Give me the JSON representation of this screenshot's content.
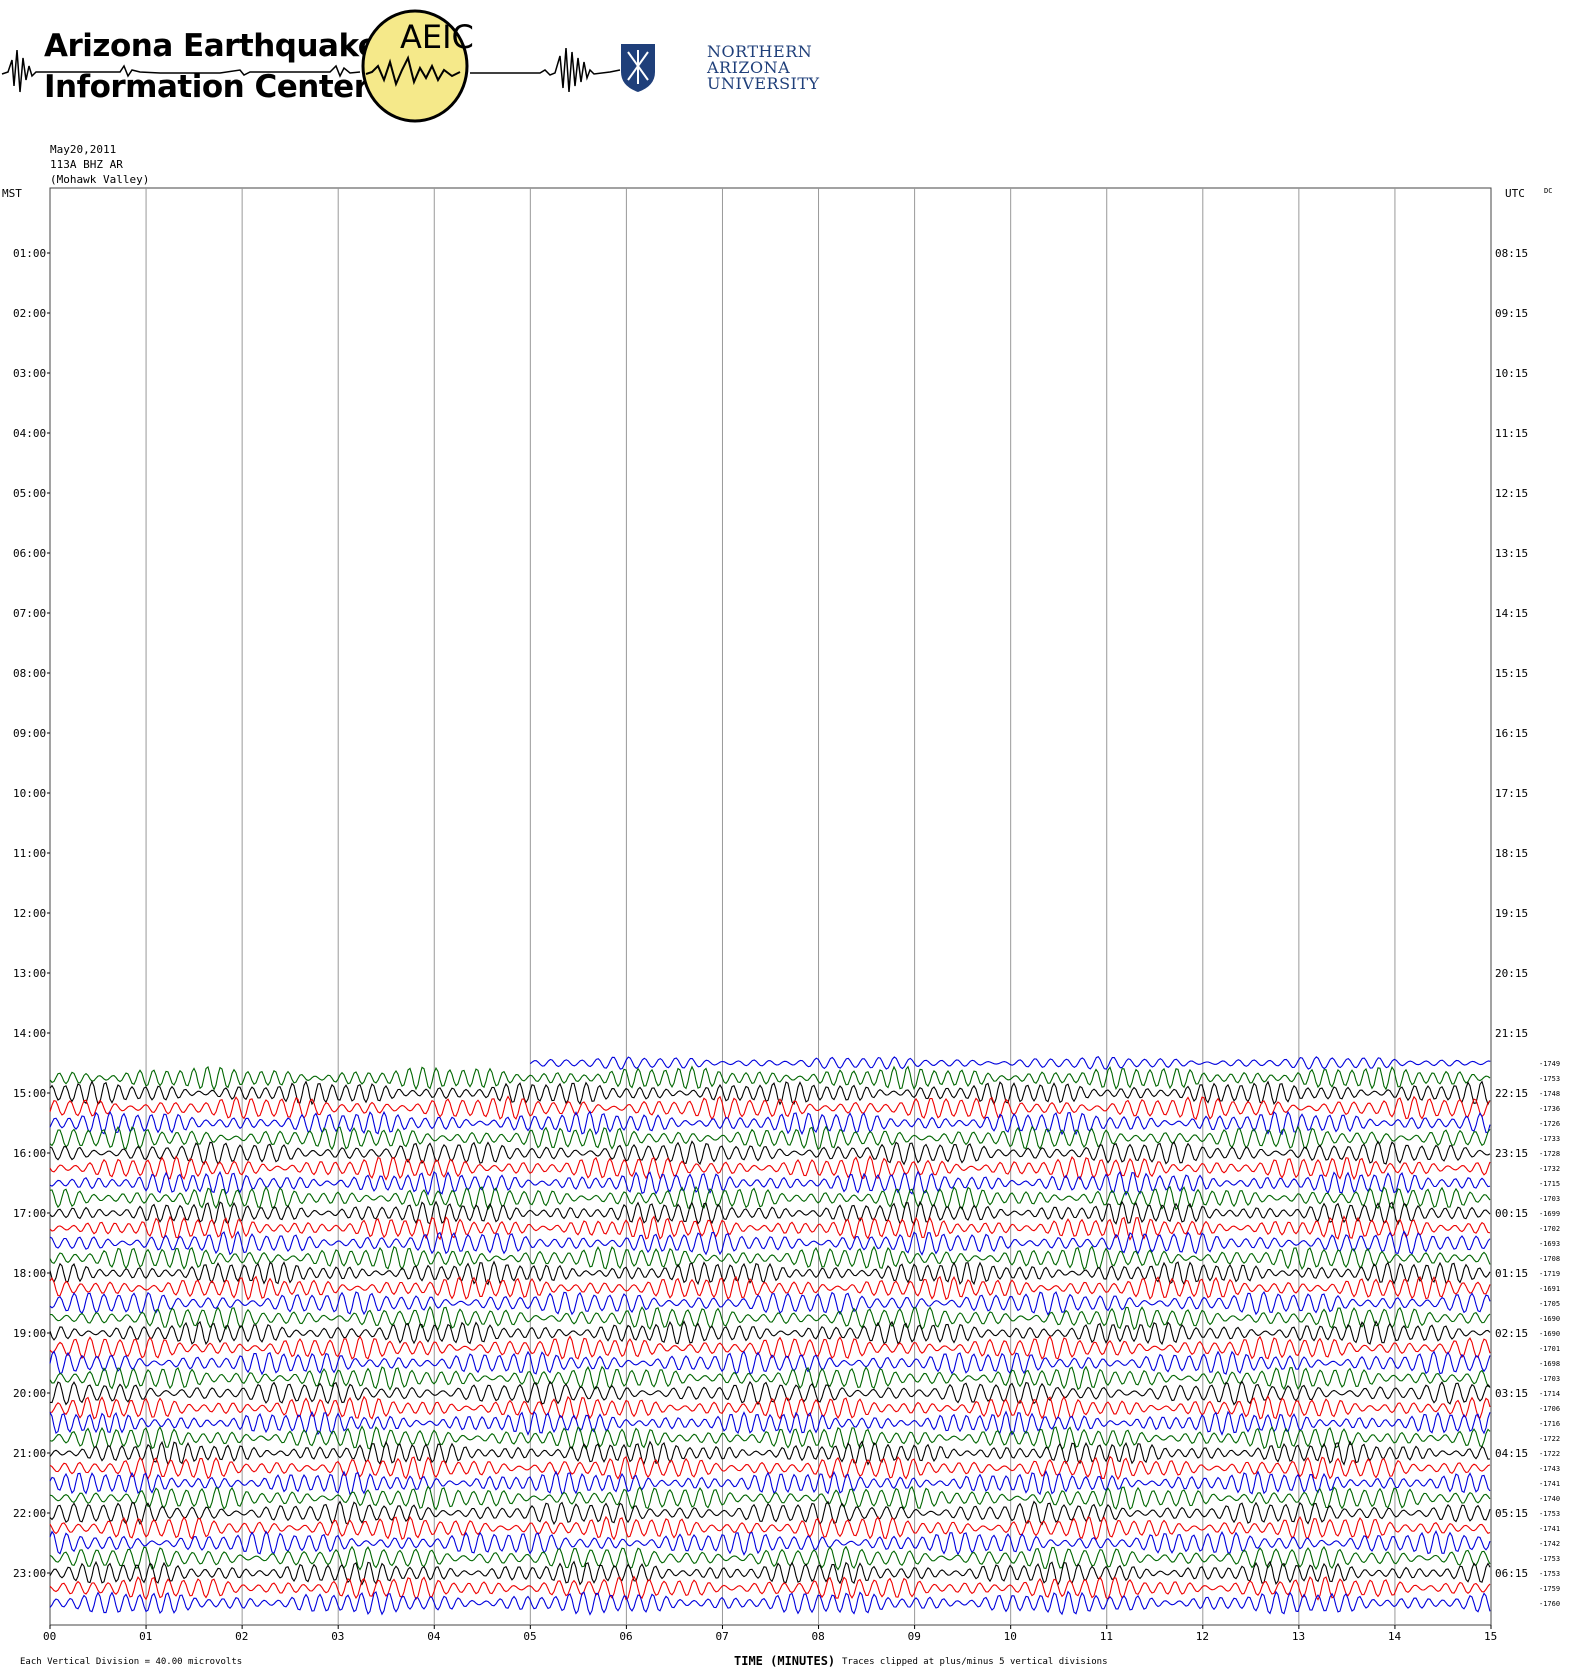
{
  "header": {
    "org_line1": "Arizona Earthquake",
    "org_line2": "Information Center",
    "badge_text": "AEIC",
    "university_line1": "NORTHERN",
    "university_line2": "ARIZONA",
    "university_line3": "UNIVERSITY"
  },
  "meta": {
    "date": "May20,2011",
    "channel": "113A BHZ AR",
    "location": "(Mohawk Valley)"
  },
  "footer": {
    "division_note": "Each Vertical Division =   40.00 microvolts",
    "clip_note": "Traces clipped at plus/minus 5 vertical divisions"
  },
  "colors": {
    "trace_cycle": [
      "#0000dd",
      "#006600",
      "#000000",
      "#ee0000"
    ],
    "grid": "#999999",
    "badge_fill": "#f5e98a"
  },
  "chart_data": {
    "type": "line",
    "title": "",
    "left_axis_label": "MST",
    "right_axis_label": "UTC",
    "right_extra_label": "DC",
    "xlabel": "TIME (MINUTES)",
    "xlim": [
      0,
      15
    ],
    "x_ticks": [
      "00",
      "01",
      "02",
      "03",
      "04",
      "05",
      "06",
      "07",
      "08",
      "09",
      "10",
      "11",
      "12",
      "13",
      "14",
      "15"
    ],
    "rows_per_hour": 4,
    "mst_labels": [
      "01:00",
      "02:00",
      "03:00",
      "04:00",
      "05:00",
      "06:00",
      "07:00",
      "08:00",
      "09:00",
      "10:00",
      "11:00",
      "12:00",
      "13:00",
      "14:00",
      "15:00",
      "16:00",
      "17:00",
      "18:00",
      "19:00",
      "20:00",
      "21:00",
      "22:00",
      "23:00"
    ],
    "utc_labels": [
      "08:15",
      "09:15",
      "10:15",
      "11:15",
      "12:15",
      "13:15",
      "14:15",
      "15:15",
      "16:15",
      "17:15",
      "18:15",
      "19:15",
      "20:15",
      "21:15",
      "22:15",
      "23:15",
      "00:15",
      "01:15",
      "02:15",
      "03:15",
      "04:15",
      "05:15",
      "06:15"
    ],
    "first_trace": {
      "start_minute": 5,
      "mst_row": 58
    },
    "dc_offsets": [
      "-1749",
      "-1753",
      "-1748",
      "-1736",
      "-1726",
      "-1733",
      "-1728",
      "-1732",
      "-1715",
      "-1703",
      "-1699",
      "-1702",
      "-1693",
      "-1708",
      "-1719",
      "-1691",
      "-1705",
      "-1690",
      "-1690",
      "-1701",
      "-1698",
      "-1703",
      "-1714",
      "-1706",
      "-1716",
      "-1722",
      "-1722",
      "-1743",
      "-1741",
      "-1740",
      "-1753",
      "-1741",
      "-1742",
      "-1753",
      "-1753",
      "-1759",
      "-1760"
    ]
  }
}
